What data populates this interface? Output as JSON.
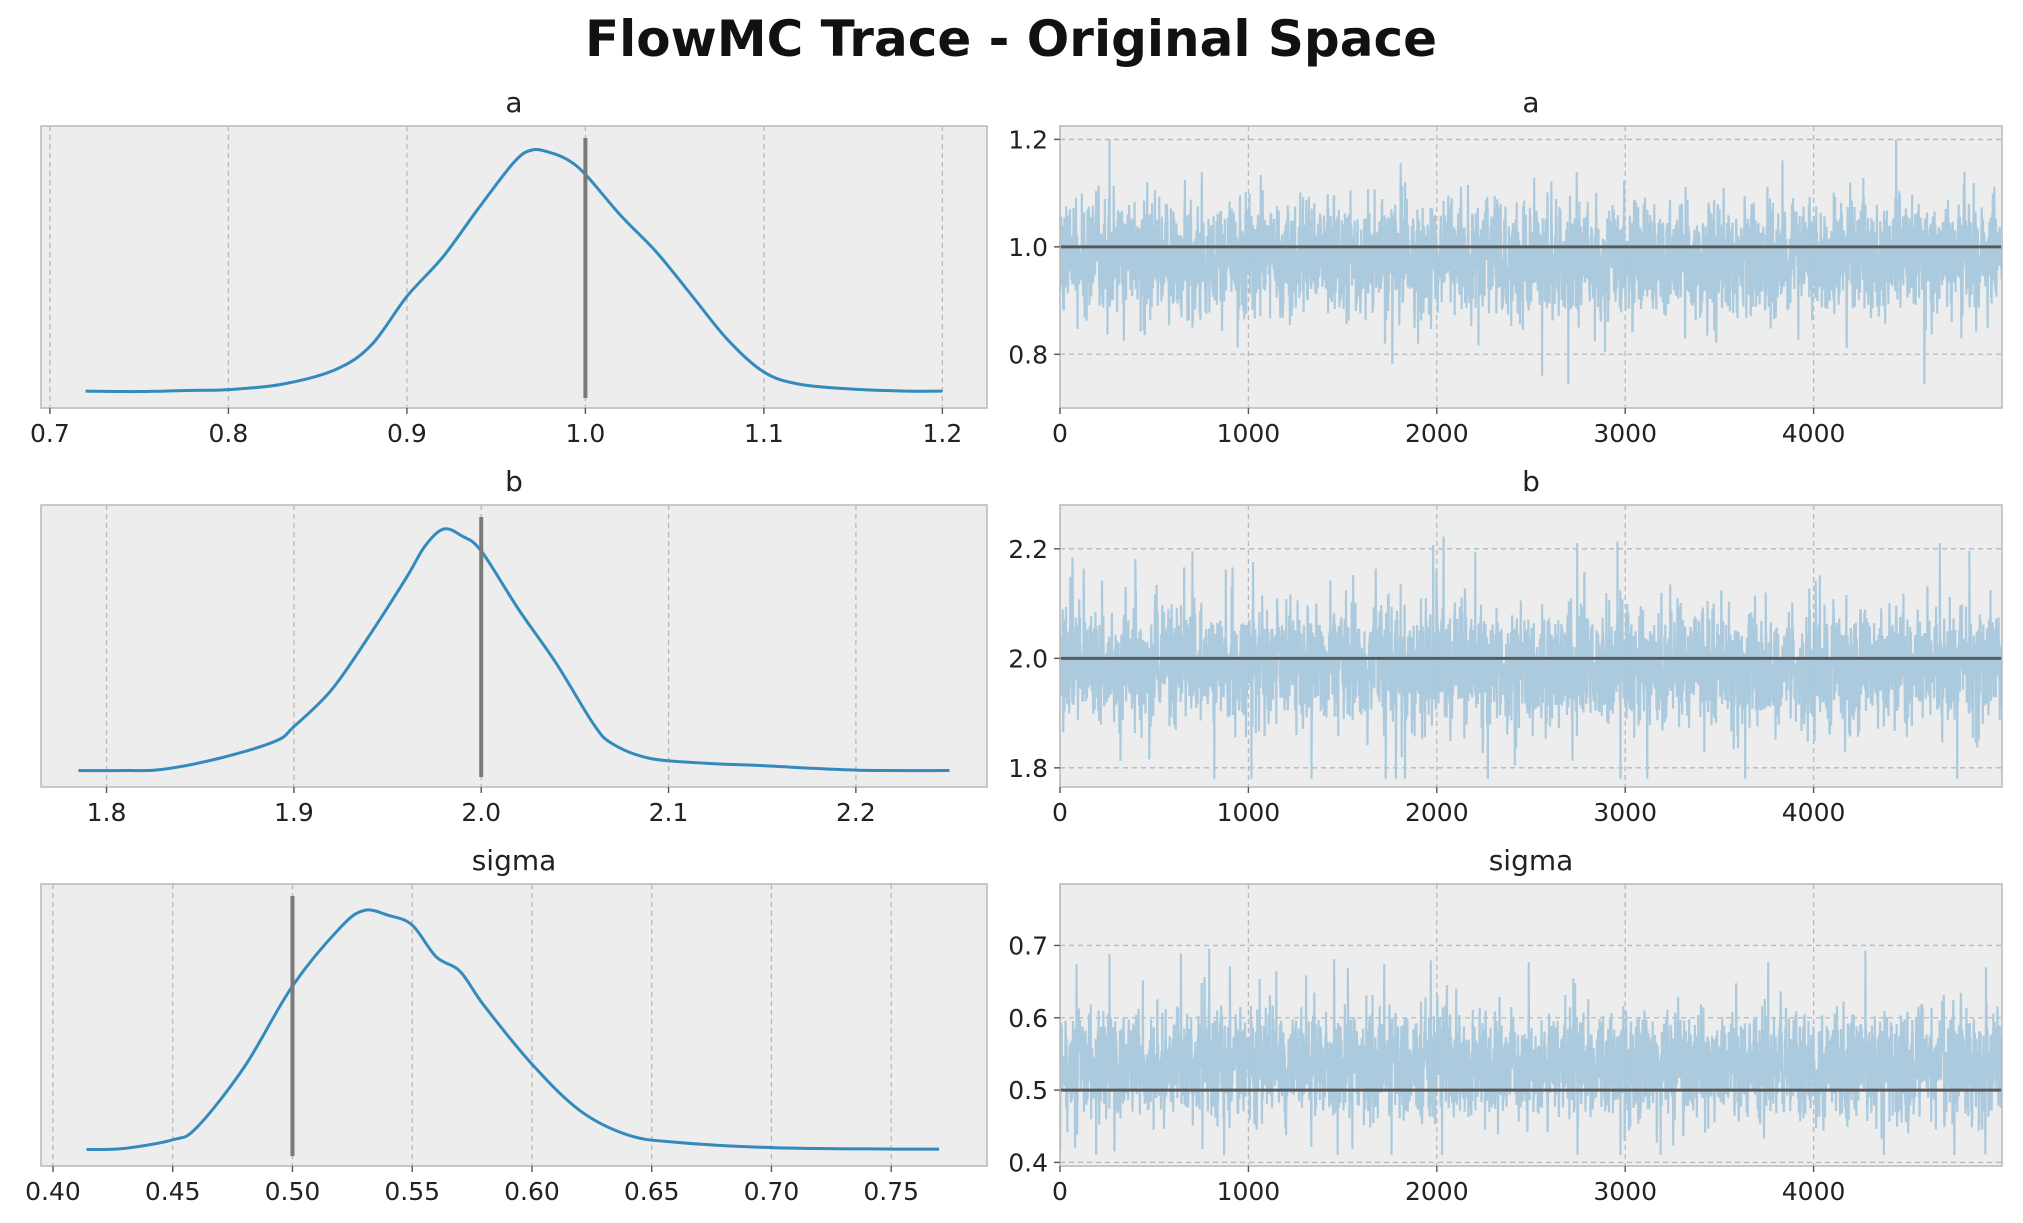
{
  "figure": {
    "title": "FlowMC Trace - Original Space"
  },
  "colors": {
    "panel_bg": "#ededed",
    "frame": "#bcbcbc",
    "grid": "#b8b8b8",
    "kde_line": "#348abd",
    "trace_line": "#a8c8dc",
    "ref_line": "#5a5a5a"
  },
  "chart_data": [
    {
      "type": "line",
      "role": "posterior-density",
      "title": "a",
      "xlim": [
        0.695,
        1.225
      ],
      "xticks": [
        0.7,
        0.8,
        0.9,
        1.0,
        1.1,
        1.2
      ],
      "xtick_labels": [
        "0.7",
        "0.8",
        "0.9",
        "1.0",
        "1.1",
        "1.2"
      ],
      "ref_value": 1.0,
      "grid": true,
      "series": [
        {
          "x": [
            0.72,
            0.75,
            0.78,
            0.8,
            0.83,
            0.86,
            0.88,
            0.9,
            0.92,
            0.94,
            0.96,
            0.97,
            0.98,
            0.99,
            1.0,
            1.02,
            1.04,
            1.06,
            1.08,
            1.1,
            1.12,
            1.15,
            1.18,
            1.2
          ],
          "y": [
            0.012,
            0.01,
            0.015,
            0.018,
            0.04,
            0.1,
            0.2,
            0.4,
            0.56,
            0.76,
            0.95,
            1.0,
            0.99,
            0.96,
            0.9,
            0.73,
            0.58,
            0.4,
            0.22,
            0.09,
            0.04,
            0.02,
            0.012,
            0.012
          ]
        }
      ]
    },
    {
      "type": "line",
      "role": "trace",
      "title": "a",
      "xlim": [
        0,
        5000
      ],
      "ylim": [
        0.7,
        1.225
      ],
      "xticks": [
        0,
        1000,
        2000,
        3000,
        4000
      ],
      "xtick_labels": [
        "0",
        "1000",
        "2000",
        "3000",
        "4000"
      ],
      "yticks": [
        0.8,
        1.0,
        1.2
      ],
      "ytick_labels": [
        "0.8",
        "1.0",
        "1.2"
      ],
      "n_samples": 5000,
      "mean": 0.98,
      "sd": 0.05,
      "min": 0.72,
      "max": 1.2,
      "ref_value": 1.0,
      "grid": true
    },
    {
      "type": "line",
      "role": "posterior-density",
      "title": "b",
      "xlim": [
        1.765,
        2.27
      ],
      "xticks": [
        1.8,
        1.9,
        2.0,
        2.1,
        2.2
      ],
      "xtick_labels": [
        "1.8",
        "1.9",
        "2.0",
        "2.1",
        "2.2"
      ],
      "ref_value": 2.0,
      "grid": true,
      "series": [
        {
          "x": [
            1.785,
            1.81,
            1.83,
            1.86,
            1.89,
            1.9,
            1.92,
            1.94,
            1.96,
            1.97,
            1.98,
            1.99,
            2.0,
            2.02,
            2.04,
            2.06,
            2.07,
            2.09,
            2.12,
            2.15,
            2.2,
            2.25
          ],
          "y": [
            0.01,
            0.01,
            0.015,
            0.06,
            0.13,
            0.19,
            0.34,
            0.56,
            0.8,
            0.93,
            1.0,
            0.97,
            0.91,
            0.67,
            0.45,
            0.2,
            0.12,
            0.06,
            0.04,
            0.03,
            0.012,
            0.01
          ]
        }
      ]
    },
    {
      "type": "line",
      "role": "trace",
      "title": "b",
      "xlim": [
        0,
        5000
      ],
      "ylim": [
        1.765,
        2.28
      ],
      "xticks": [
        0,
        1000,
        2000,
        3000,
        4000
      ],
      "xtick_labels": [
        "0",
        "1000",
        "2000",
        "3000",
        "4000"
      ],
      "yticks": [
        1.8,
        2.0,
        2.2
      ],
      "ytick_labels": [
        "1.8",
        "2.0",
        "2.2"
      ],
      "n_samples": 5000,
      "mean": 1.985,
      "sd": 0.05,
      "min": 1.78,
      "max": 2.26,
      "ref_value": 2.0,
      "grid": true
    },
    {
      "type": "line",
      "role": "posterior-density",
      "title": "sigma",
      "xlim": [
        0.395,
        0.79
      ],
      "xticks": [
        0.4,
        0.45,
        0.5,
        0.55,
        0.6,
        0.65,
        0.7,
        0.75
      ],
      "xtick_labels": [
        "0.40",
        "0.45",
        "0.50",
        "0.55",
        "0.60",
        "0.65",
        "0.70",
        "0.75"
      ],
      "ref_value": 0.5,
      "grid": true,
      "series": [
        {
          "x": [
            0.414,
            0.43,
            0.45,
            0.46,
            0.48,
            0.5,
            0.52,
            0.53,
            0.54,
            0.55,
            0.56,
            0.57,
            0.58,
            0.6,
            0.62,
            0.64,
            0.66,
            0.7,
            0.75,
            0.77
          ],
          "y": [
            0.01,
            0.015,
            0.05,
            0.1,
            0.35,
            0.68,
            0.92,
            0.99,
            0.97,
            0.93,
            0.8,
            0.74,
            0.6,
            0.36,
            0.17,
            0.07,
            0.04,
            0.018,
            0.012,
            0.012
          ]
        }
      ]
    },
    {
      "type": "line",
      "role": "trace",
      "title": "sigma",
      "xlim": [
        0,
        5000
      ],
      "ylim": [
        0.395,
        0.785
      ],
      "xticks": [
        0,
        1000,
        2000,
        3000,
        4000
      ],
      "xtick_labels": [
        "0",
        "1000",
        "2000",
        "3000",
        "4000"
      ],
      "yticks": [
        0.4,
        0.5,
        0.6,
        0.7
      ],
      "ytick_labels": [
        "0.4",
        "0.5",
        "0.6",
        "0.7"
      ],
      "n_samples": 5000,
      "mean": 0.535,
      "sd": 0.035,
      "min": 0.41,
      "max": 0.77,
      "ref_value": 0.5,
      "grid": true
    }
  ]
}
